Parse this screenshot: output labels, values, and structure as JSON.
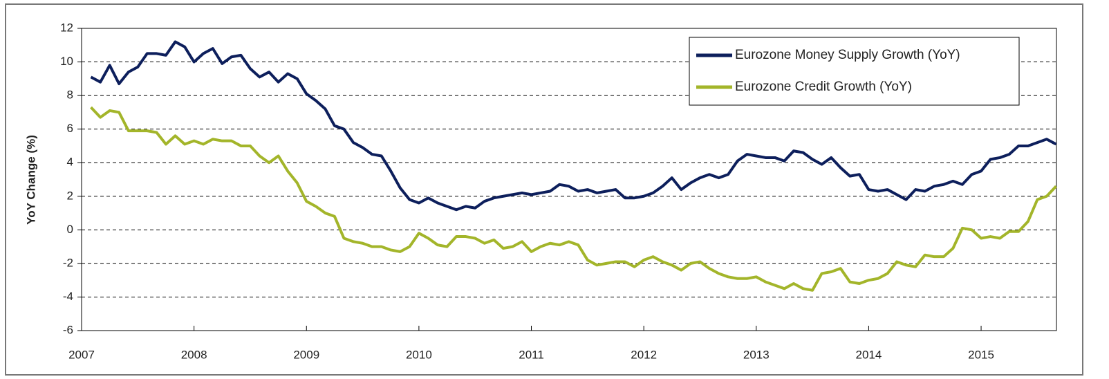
{
  "chart_data": {
    "type": "line",
    "ylabel": "YoY Change (%)",
    "x": [
      2007.083,
      2007.167,
      2007.25,
      2007.333,
      2007.417,
      2007.5,
      2007.583,
      2007.667,
      2007.75,
      2007.833,
      2007.917,
      2008.0,
      2008.083,
      2008.167,
      2008.25,
      2008.333,
      2008.417,
      2008.5,
      2008.583,
      2008.667,
      2008.75,
      2008.833,
      2008.917,
      2009.0,
      2009.083,
      2009.167,
      2009.25,
      2009.333,
      2009.417,
      2009.5,
      2009.583,
      2009.667,
      2009.75,
      2009.833,
      2009.917,
      2010.0,
      2010.083,
      2010.167,
      2010.25,
      2010.333,
      2010.417,
      2010.5,
      2010.583,
      2010.667,
      2010.75,
      2010.833,
      2010.917,
      2011.0,
      2011.083,
      2011.167,
      2011.25,
      2011.333,
      2011.417,
      2011.5,
      2011.583,
      2011.667,
      2011.75,
      2011.833,
      2011.917,
      2012.0,
      2012.083,
      2012.167,
      2012.25,
      2012.333,
      2012.417,
      2012.5,
      2012.583,
      2012.667,
      2012.75,
      2012.833,
      2012.917,
      2013.0,
      2013.083,
      2013.167,
      2013.25,
      2013.333,
      2013.417,
      2013.5,
      2013.583,
      2013.667,
      2013.75,
      2013.833,
      2013.917,
      2014.0,
      2014.083,
      2014.167,
      2014.25,
      2014.333,
      2014.417,
      2014.5,
      2014.583,
      2014.667,
      2014.75,
      2014.833,
      2014.917,
      2015.0,
      2015.083,
      2015.167,
      2015.25,
      2015.333,
      2015.417,
      2015.5,
      2015.583,
      2015.667
    ],
    "series": [
      {
        "name": "Eurozone Money Supply Growth (YoY)",
        "color": "#0d1f5c",
        "values": [
          9.1,
          8.8,
          9.8,
          8.7,
          9.4,
          9.7,
          10.5,
          10.5,
          10.4,
          11.2,
          10.9,
          10.0,
          10.5,
          10.8,
          9.9,
          10.3,
          10.4,
          9.6,
          9.1,
          9.4,
          8.8,
          9.3,
          9.0,
          8.1,
          7.7,
          7.2,
          6.2,
          6.0,
          5.2,
          4.9,
          4.5,
          4.4,
          3.5,
          2.5,
          1.8,
          1.6,
          1.9,
          1.6,
          1.4,
          1.2,
          1.4,
          1.3,
          1.7,
          1.9,
          2.0,
          2.1,
          2.2,
          2.1,
          2.2,
          2.3,
          2.7,
          2.6,
          2.3,
          2.4,
          2.2,
          2.3,
          2.4,
          1.9,
          1.9,
          2.0,
          2.2,
          2.6,
          3.1,
          2.4,
          2.8,
          3.1,
          3.3,
          3.1,
          3.3,
          4.1,
          4.5,
          4.4,
          4.3,
          4.3,
          4.1,
          4.7,
          4.6,
          4.2,
          3.9,
          4.3,
          3.7,
          3.2,
          3.3,
          2.4,
          2.3,
          2.4,
          2.1,
          1.8,
          2.4,
          2.3,
          2.6,
          2.7,
          2.9,
          2.7,
          3.3,
          3.5,
          4.2,
          4.3,
          4.5,
          5.0,
          5.0,
          5.2,
          5.4,
          5.1
        ]
      },
      {
        "name": "Eurozone Credit Growth (YoY)",
        "color": "#a3b52a",
        "values": [
          7.3,
          6.7,
          7.1,
          7.0,
          5.9,
          5.9,
          5.9,
          5.8,
          5.1,
          5.6,
          5.1,
          5.3,
          5.1,
          5.4,
          5.3,
          5.3,
          5.0,
          5.0,
          4.4,
          4.0,
          4.4,
          3.5,
          2.8,
          1.7,
          1.4,
          1.0,
          0.8,
          -0.5,
          -0.7,
          -0.8,
          -1.0,
          -1.0,
          -1.2,
          -1.3,
          -1.0,
          -0.2,
          -0.5,
          -0.9,
          -1.0,
          -0.4,
          -0.4,
          -0.5,
          -0.8,
          -0.6,
          -1.1,
          -1.0,
          -0.7,
          -1.3,
          -1.0,
          -0.8,
          -0.9,
          -0.7,
          -0.9,
          -1.8,
          -2.1,
          -2.0,
          -1.9,
          -1.9,
          -2.2,
          -1.8,
          -1.6,
          -1.9,
          -2.1,
          -2.4,
          -2.0,
          -1.9,
          -2.3,
          -2.6,
          -2.8,
          -2.9,
          -2.9,
          -2.8,
          -3.1,
          -3.3,
          -3.5,
          -3.2,
          -3.5,
          -3.6,
          -2.6,
          -2.5,
          -2.3,
          -3.1,
          -3.2,
          -3.0,
          -2.9,
          -2.6,
          -1.9,
          -2.1,
          -2.2,
          -1.5,
          -1.6,
          -1.6,
          -1.1,
          0.1,
          0.0,
          -0.5,
          -0.4,
          -0.5,
          -0.1,
          -0.1,
          0.5,
          1.8,
          2.0,
          2.6
        ]
      }
    ],
    "xlim": [
      2007,
      2015.67
    ],
    "xticks": [
      2007,
      2008,
      2009,
      2010,
      2011,
      2012,
      2013,
      2014,
      2015
    ],
    "ylim": [
      -6,
      12
    ],
    "yticks": [
      -6,
      -4,
      -2,
      0,
      2,
      4,
      6,
      8,
      10,
      12
    ],
    "grid": true,
    "legend": "upper right"
  }
}
